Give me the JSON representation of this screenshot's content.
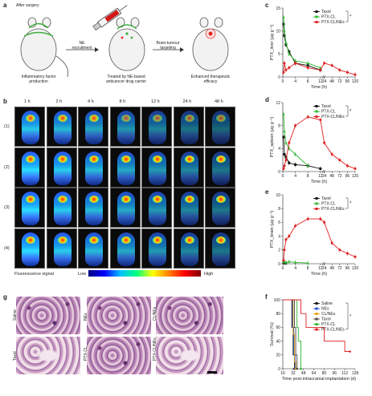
{
  "panel_a": {
    "label": "a",
    "after_surgery": "After surgery",
    "ne_recruitment": [
      "NE",
      "recruitment"
    ],
    "brain_tumour_targeting": [
      "Brain-tumour",
      "targeting"
    ],
    "inflammatory": [
      "Inflammatory factor",
      "production"
    ],
    "treated": [
      "Treated by NE-based",
      "anticancer drug carrier"
    ],
    "enhanced": [
      "Enhanced therapeutic",
      "efficacy"
    ]
  },
  "panel_b": {
    "label": "b",
    "times": [
      "1 h",
      "2 h",
      "4 h",
      "8 h",
      "12 h",
      "24 h",
      "48 h"
    ],
    "rows": [
      "(1)",
      "(2)",
      "(3)",
      "(4)"
    ],
    "fluor_label": "Fluorescence signal",
    "low": "Low",
    "high": "High"
  },
  "panel_g": {
    "label": "g",
    "labels": [
      "Saline",
      "NEs",
      "CL/NEs",
      "Taxol",
      "PTX-CL",
      "PTX-CL/NEs"
    ]
  },
  "chart_data": [
    {
      "id": "c",
      "type": "line",
      "ylabel": "PTX_liver (μg g⁻¹)",
      "xlabel": "Time (h)",
      "ylim": [
        0,
        15
      ],
      "yticks": [
        0,
        5,
        10,
        15
      ],
      "xticks": [
        "0",
        "4",
        "8",
        "12",
        "24",
        "48",
        "72",
        "96",
        "120"
      ],
      "colors": {
        "Taxol": "#111111",
        "PTX-CL": "#2db52d",
        "PTX-CL/NEs": "#e02020"
      },
      "legend": [
        "Taxol",
        "PTX-CL",
        "PTX-CL/NEs"
      ],
      "series": [
        {
          "name": "Taxol",
          "x": [
            0.25,
            0.5,
            1,
            2,
            4,
            8,
            12
          ],
          "y": [
            11.5,
            9,
            7,
            5.5,
            3,
            2.5,
            1.5
          ]
        },
        {
          "name": "PTX-CL",
          "x": [
            0.25,
            0.5,
            1,
            2,
            4,
            8,
            12
          ],
          "y": [
            13,
            10,
            7.5,
            5,
            3.5,
            3,
            2
          ]
        },
        {
          "name": "PTX-CL/NEs",
          "x": [
            0.25,
            0.5,
            1,
            2,
            4,
            8,
            12,
            24,
            48,
            72,
            96,
            120
          ],
          "y": [
            1,
            3,
            1.5,
            2,
            3,
            2,
            1.5,
            3,
            2.5,
            1.5,
            1,
            0.5
          ]
        }
      ]
    },
    {
      "id": "d",
      "type": "line",
      "ylabel": "PTX_spleen (μg g⁻¹)",
      "xlabel": "Time (h)",
      "ylim": [
        0,
        12
      ],
      "yticks": [
        0,
        4,
        8,
        12
      ],
      "xticks": [
        "0",
        "4",
        "8",
        "12",
        "24",
        "48",
        "72",
        "96",
        "120"
      ],
      "colors": {
        "Taxol": "#111111",
        "PTX-CL": "#2db52d",
        "PTX-CL/NEs": "#e02020"
      },
      "legend": [
        "Taxol",
        "PTX-CL",
        "PTX-CL/NEs"
      ],
      "series": [
        {
          "name": "Taxol",
          "x": [
            0.25,
            0.5,
            1,
            2,
            4,
            8,
            12
          ],
          "y": [
            6,
            3,
            2.5,
            1.5,
            1.2,
            1,
            0.5
          ]
        },
        {
          "name": "PTX-CL",
          "x": [
            0.25,
            0.5,
            1,
            2,
            4,
            8
          ],
          "y": [
            10,
            7,
            5,
            4,
            3,
            1
          ]
        },
        {
          "name": "PTX-CL/NEs",
          "x": [
            0.25,
            0.5,
            1,
            2,
            4,
            8,
            12,
            24,
            48,
            72,
            96,
            120
          ],
          "y": [
            0.5,
            1,
            2,
            5,
            8,
            9.5,
            9,
            5,
            3,
            2,
            1,
            0.5
          ]
        }
      ]
    },
    {
      "id": "e",
      "type": "line",
      "ylabel": "PTX_brain (μg g⁻¹)",
      "xlabel": "Time (h)",
      "ylim": [
        0,
        10
      ],
      "yticks": [
        0,
        2,
        4,
        6,
        8,
        10
      ],
      "xticks": [
        "0",
        "4",
        "8",
        "12",
        "24",
        "48",
        "72",
        "96",
        "120"
      ],
      "colors": {
        "Taxol": "#111111",
        "PTX-CL": "#2db52d",
        "PTX-CL/NEs": "#e02020"
      },
      "legend": [
        "Taxol",
        "PTX-CL",
        "PTX-CL/NEs"
      ],
      "series": [
        {
          "name": "Taxol",
          "x": [
            0.25,
            0.5,
            1
          ],
          "y": [
            0.2,
            0.1,
            0.1
          ]
        },
        {
          "name": "PTX-CL",
          "x": [
            0.25,
            0.5,
            1,
            2,
            4,
            8
          ],
          "y": [
            0.3,
            0.3,
            0.2,
            0.3,
            0.2,
            0.1
          ]
        },
        {
          "name": "PTX-CL/NEs",
          "x": [
            0.25,
            0.5,
            1,
            2,
            4,
            8,
            12,
            24,
            48,
            72,
            96,
            120
          ],
          "y": [
            0.5,
            2,
            3.5,
            4,
            5.5,
            6.5,
            6.5,
            6,
            3,
            2,
            1.5,
            1
          ]
        }
      ]
    },
    {
      "id": "f",
      "type": "line",
      "ylabel": "Survival (%)",
      "xlabel": "Time post-intracranial implantation (d)",
      "ylim": [
        0,
        100
      ],
      "yticks": [
        0,
        20,
        40,
        60,
        80,
        100
      ],
      "xlim": [
        16,
        128
      ],
      "xticks": [
        16,
        32,
        48,
        64,
        80,
        96,
        112,
        128
      ],
      "legend": [
        "Saline",
        "NEs",
        "CL/NEs",
        "Taxol",
        "PTX-CL",
        "PTX-CL/NEs"
      ],
      "colors": {
        "Saline": "#111111",
        "NEs": "#1f4fd0",
        "CL/NEs": "#e8a000",
        "Taxol": "#444444",
        "PTX-CL": "#2db52d",
        "PTX-CL/NEs": "#e02020"
      },
      "series": [
        {
          "name": "Saline",
          "x": [
            16,
            28,
            30,
            32,
            34
          ],
          "y": [
            100,
            100,
            60,
            20,
            0
          ]
        },
        {
          "name": "NEs",
          "x": [
            16,
            29,
            31,
            33,
            35
          ],
          "y": [
            100,
            100,
            60,
            20,
            0
          ]
        },
        {
          "name": "CL/NEs",
          "x": [
            16,
            30,
            32,
            34,
            36
          ],
          "y": [
            100,
            100,
            50,
            10,
            0
          ]
        },
        {
          "name": "Taxol",
          "x": [
            16,
            32,
            34,
            36,
            38
          ],
          "y": [
            100,
            100,
            60,
            20,
            0
          ]
        },
        {
          "name": "PTX-CL",
          "x": [
            16,
            34,
            38,
            40,
            44
          ],
          "y": [
            100,
            100,
            60,
            40,
            0
          ]
        },
        {
          "name": "PTX-CL/NEs",
          "x": [
            16,
            36,
            44,
            52,
            64,
            80,
            96,
            112,
            120
          ],
          "y": [
            100,
            100,
            80,
            60,
            60,
            40,
            40,
            25,
            25
          ]
        }
      ]
    }
  ]
}
